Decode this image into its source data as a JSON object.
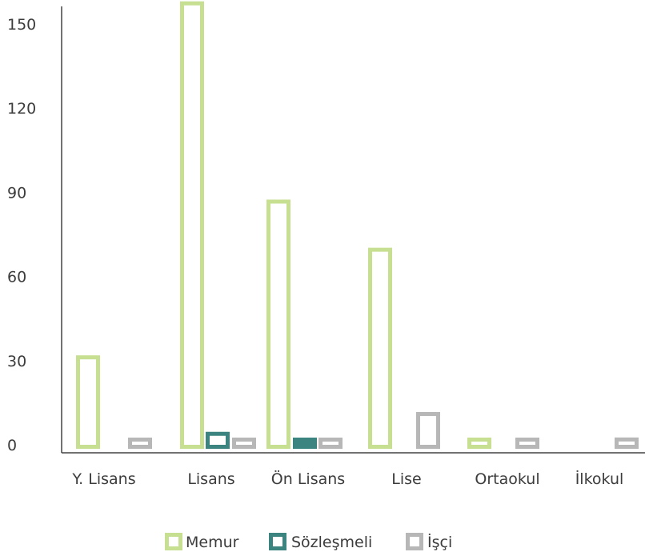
{
  "chart_data": {
    "type": "bar",
    "categories": [
      "Y. Lisans",
      "Lisans",
      "Ön Lisans",
      "Lise",
      "Ortaokul",
      "İlkokul"
    ],
    "series": [
      {
        "name": "Memur",
        "values": [
          33,
          158,
          88,
          71,
          2,
          0
        ],
        "color": "#cfe3a1",
        "stroke": "#c6df90"
      },
      {
        "name": "Sözleşmeli",
        "values": [
          0,
          6,
          1,
          0,
          0,
          0
        ],
        "color": "#3c8480",
        "stroke": "#3c8480"
      },
      {
        "name": "İşçi",
        "values": [
          2,
          2,
          3,
          13,
          3,
          4
        ],
        "color": "#b7b7b7",
        "stroke": "#b7b7b7"
      }
    ],
    "y_ticks": [
      "0",
      "30",
      "60",
      "90",
      "120",
      "150"
    ],
    "ylim": [
      0,
      160
    ],
    "title": "",
    "xlabel": "",
    "ylabel": "",
    "legend_position": "bottom",
    "bar_style": "outlined",
    "grid": false
  }
}
